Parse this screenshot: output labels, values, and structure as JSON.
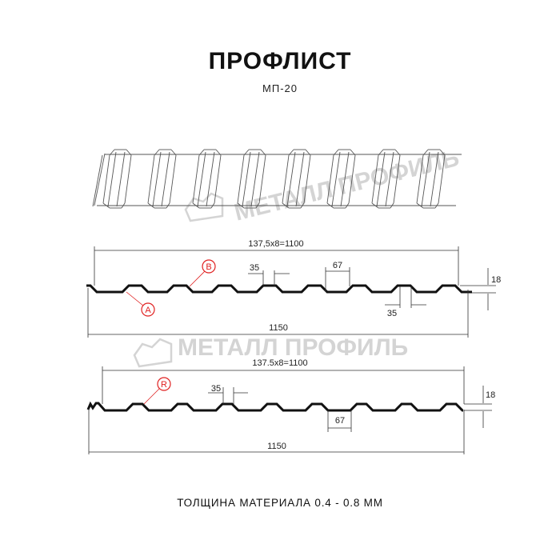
{
  "header": {
    "title": "ПРОФЛИСТ",
    "subtitle": "МП-20"
  },
  "watermark": {
    "text": "МЕТАЛЛ ПРОФИЛЬ",
    "color": "#d4d4d4"
  },
  "profile_1": {
    "pitch_label": "137,5x8=1100",
    "width_label": "1150",
    "top_rib_label": "35",
    "bottom_rib_label": "35",
    "pitch_gap_label": "67",
    "height_label": "18",
    "markers": [
      "A",
      "B"
    ]
  },
  "profile_2": {
    "pitch_label": "137.5x8=1100",
    "width_label": "1150",
    "top_rib_label": "35",
    "pitch_gap_label": "67",
    "height_label": "18",
    "markers": [
      "R"
    ]
  },
  "footer": {
    "thickness_text": "ТОЛЩИНА МАТЕРИАЛА 0.4 - 0.8 ММ"
  },
  "colors": {
    "marker": "#e02020",
    "line": "#111111"
  }
}
